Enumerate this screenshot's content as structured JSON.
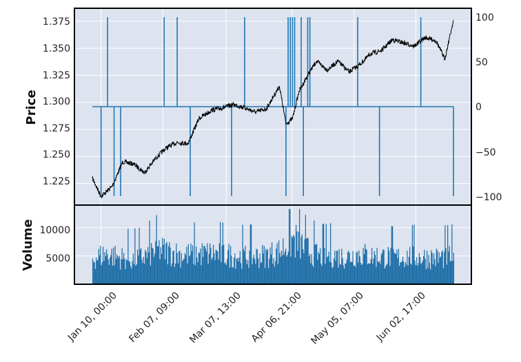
{
  "chart_data": [
    {
      "type": "line",
      "panel": "price",
      "ylabel": "Price",
      "ylim": [
        1.205,
        1.387
      ],
      "yticks": [
        "1.225",
        "1.250",
        "1.275",
        "1.300",
        "1.325",
        "1.350",
        "1.375"
      ],
      "series": [
        {
          "color": "#000000",
          "x": [
            "Jan 06, 00:00",
            "Jan 10, 00:00",
            "Jan 15, 00:00",
            "Jan 20, 00:00",
            "Jan 25, 00:00",
            "Jan 30, 00:00",
            "Feb 04, 00:00",
            "Feb 09, 00:00",
            "Feb 14, 00:00",
            "Feb 19, 00:00",
            "Feb 24, 00:00",
            "Mar 01, 00:00",
            "Mar 06, 00:00",
            "Mar 11, 00:00",
            "Mar 16, 00:00",
            "Mar 21, 00:00",
            "Mar 26, 00:00",
            "Apr 01, 00:00",
            "Apr 04, 00:00",
            "Apr 07, 00:00",
            "Apr 10, 00:00",
            "Apr 14, 00:00",
            "Apr 18, 00:00",
            "Apr 23, 00:00",
            "Apr 28, 00:00",
            "May 03, 00:00",
            "May 08, 00:00",
            "May 13, 00:00",
            "May 18, 00:00",
            "May 23, 00:00",
            "May 28, 00:00",
            "Jun 02, 00:00",
            "Jun 07, 00:00",
            "Jun 12, 00:00",
            "Jun 16, 00:00",
            "Jun 20, 00:00"
          ],
          "y": [
            1.23,
            1.213,
            1.222,
            1.245,
            1.243,
            1.235,
            1.248,
            1.258,
            1.263,
            1.262,
            1.285,
            1.293,
            1.295,
            1.298,
            1.295,
            1.291,
            1.294,
            1.315,
            1.28,
            1.285,
            1.31,
            1.325,
            1.338,
            1.33,
            1.338,
            1.328,
            1.335,
            1.345,
            1.348,
            1.358,
            1.355,
            1.352,
            1.36,
            1.357,
            1.34,
            1.376
          ]
        }
      ]
    },
    {
      "type": "bar",
      "panel": "price",
      "axis": "secondary",
      "ylim": [
        -110,
        110
      ],
      "yticks": [
        "−100",
        "−50",
        "0",
        "50",
        "100"
      ],
      "series": [
        {
          "color": "#1f77b4",
          "x": [
            "Jan 06, 00:00",
            "Jan 10, 00:00",
            "Jan 13, 00:00",
            "Jan 16, 00:00",
            "Jan 19, 00:00",
            "Feb 08, 00:00",
            "Feb 14, 00:00",
            "Feb 20, 00:00",
            "Mar 10, 00:00",
            "Mar 16, 00:00",
            "Apr 04, 00:00",
            "Apr 05, 00:00",
            "Apr 06, 00:00",
            "Apr 07, 00:00",
            "Apr 08, 00:00",
            "Apr 11, 00:00",
            "Apr 12, 00:00",
            "Apr 14, 00:00",
            "Apr 15, 00:00",
            "May 07, 00:00",
            "May 17, 00:00",
            "Jun 05, 00:00",
            "Jun 20, 00:00"
          ],
          "y": [
            0,
            -100,
            100,
            -100,
            -100,
            100,
            100,
            -100,
            -100,
            100,
            -100,
            100,
            100,
            100,
            100,
            100,
            -100,
            100,
            100,
            100,
            -100,
            100,
            -100
          ]
        }
      ]
    },
    {
      "type": "bar",
      "panel": "volume",
      "ylabel": "Volume",
      "ylim": [
        0,
        14000
      ],
      "yticks": [
        "5000",
        "10000"
      ],
      "xticks": [
        "Jan 10, 00:00",
        "Feb 07, 09:00",
        "Mar 07, 13:00",
        "Apr 06, 21:00",
        "May 05, 07:00",
        "Jun 02, 17:00"
      ],
      "series": [
        {
          "color": "#1f6fa8",
          "x": [
            "Jan 06",
            "Jan 12",
            "Jan 18",
            "Jan 24",
            "Jan 30",
            "Feb 05",
            "Feb 11",
            "Feb 17",
            "Feb 23",
            "Mar 01",
            "Mar 07",
            "Mar 13",
            "Mar 19",
            "Mar 25",
            "Apr 01",
            "Apr 04",
            "Apr 07",
            "Apr 10",
            "Apr 13",
            "Apr 19",
            "Apr 25",
            "May 01",
            "May 07",
            "May 13",
            "May 19",
            "May 25",
            "May 31",
            "Jun 06",
            "Jun 12",
            "Jun 18"
          ],
          "y": [
            5500,
            6500,
            5800,
            5200,
            6000,
            7500,
            6800,
            6200,
            6400,
            6600,
            6300,
            6000,
            5900,
            6100,
            7000,
            8500,
            9500,
            8800,
            7500,
            6000,
            6200,
            5800,
            6500,
            6000,
            5900,
            5700,
            6000,
            5800,
            5600,
            6000
          ]
        }
      ]
    }
  ]
}
